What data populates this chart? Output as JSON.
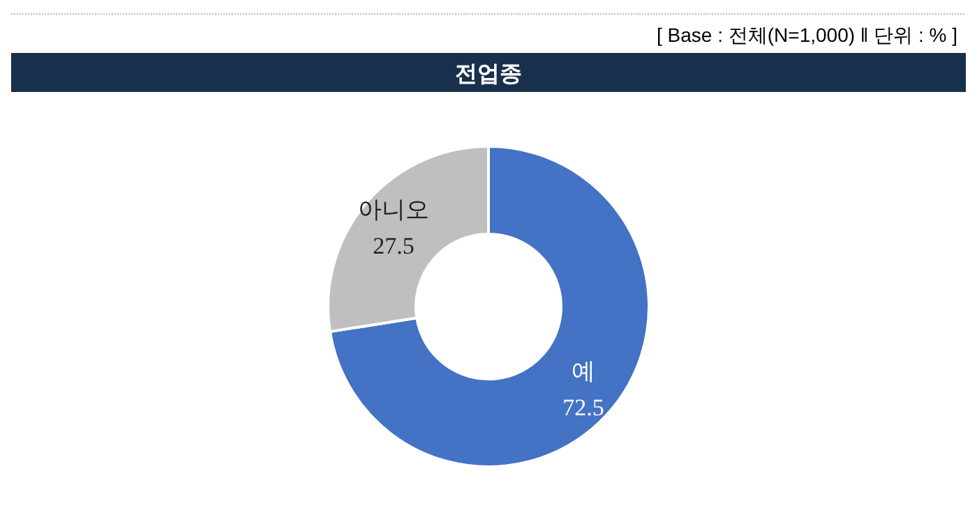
{
  "chart_data": {
    "type": "donut",
    "title": "전업종",
    "annotations": [
      "[ Base : 전체(N=1,000) ‖ 단위 : % ]"
    ],
    "categories": [
      "예",
      "아니오"
    ],
    "values": [
      72.5,
      27.5
    ],
    "colors": [
      "#4472c4",
      "#bfbfbf"
    ],
    "data_labels": true
  }
}
